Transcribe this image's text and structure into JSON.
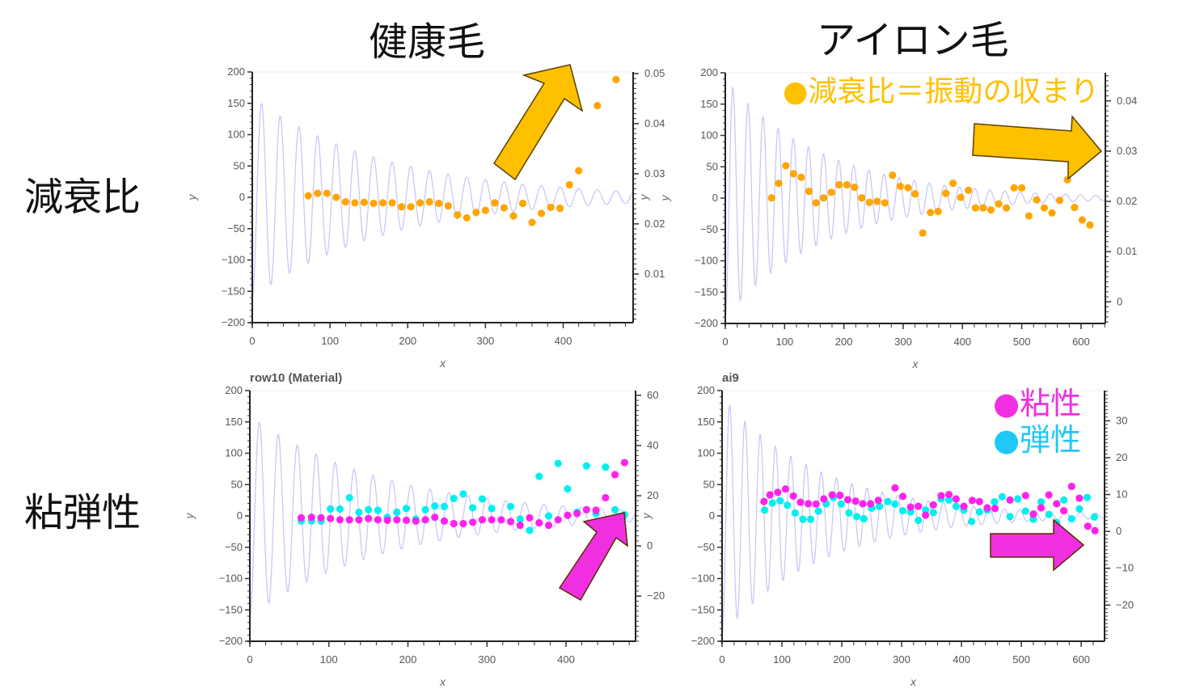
{
  "column_titles": [
    "健康毛",
    "アイロン毛"
  ],
  "row_labels": [
    "減衰比",
    "粘弾性"
  ],
  "annotations": {
    "damping": "●減衰比＝振動の収まり",
    "viscosity": "●粘性",
    "elasticity": "●弾性"
  },
  "colors": {
    "orange_text": "#FFC000",
    "orange_dots": "#FFA500",
    "magenta": "#FF22EE",
    "cyan": "#00F0F0",
    "wave": "#C8C8F8",
    "arrow_orange": "#FFC000",
    "arrow_magenta": "#F030E0"
  },
  "chart_data": [
    {
      "type": "scatter",
      "panel": "健康毛 / 減衰比",
      "title": "",
      "xlabel": "x",
      "ylabel": "y",
      "y2label": "y",
      "xlim": [
        0,
        490
      ],
      "ylim": [
        -200,
        200
      ],
      "y2lim": [
        0.0003,
        0.0503
      ],
      "xticks": [
        "0",
        "100",
        "200",
        "300",
        "400"
      ],
      "yticks": [
        "200",
        "150",
        "100",
        "50",
        "0",
        "−50",
        "−100",
        "−150",
        "−200"
      ],
      "y2ticks": [
        "0.05",
        "0.04",
        "0.03",
        "0.02",
        "0.01"
      ],
      "wave": {
        "amplitude": 160,
        "period": 24,
        "decay": 0.0058
      },
      "series": [
        {
          "name": "減衰比",
          "color": "#FFA500",
          "x": [
            72,
            84,
            96,
            108,
            120,
            132,
            144,
            156,
            168,
            180,
            192,
            204,
            216,
            228,
            240,
            252,
            264,
            276,
            288,
            300,
            312,
            324,
            336,
            348,
            360,
            372,
            384,
            396,
            408,
            420,
            444,
            468
          ],
          "y": [
            0.0256,
            0.0261,
            0.0261,
            0.0253,
            0.0244,
            0.0242,
            0.0243,
            0.0241,
            0.0242,
            0.0242,
            0.0234,
            0.0234,
            0.0242,
            0.0244,
            0.0241,
            0.0236,
            0.0218,
            0.0212,
            0.0223,
            0.0227,
            0.0242,
            0.0232,
            0.0216,
            0.0241,
            0.0203,
            0.0221,
            0.0233,
            0.0231,
            0.0278,
            0.0306,
            0.0436,
            0.0488
          ]
        }
      ]
    },
    {
      "type": "scatter",
      "panel": "アイロン毛 / 減衰比",
      "title": "",
      "xlabel": "x",
      "ylabel": "y",
      "y2label": "",
      "xlim": [
        0,
        641
      ],
      "ylim": [
        -200,
        200
      ],
      "y2lim": [
        -0.0043,
        0.0456
      ],
      "xticks": [
        "0",
        "100",
        "200",
        "300",
        "400",
        "500",
        "600"
      ],
      "yticks": [
        "200",
        "150",
        "100",
        "50",
        "0",
        "−50",
        "−100",
        "−150",
        "−200"
      ],
      "y2ticks": [
        "0.04",
        "0.03",
        "0.02",
        "0.01",
        "0"
      ],
      "wave": {
        "amplitude": 190,
        "period": 25.5,
        "decay": 0.006
      },
      "series": [
        {
          "name": "減衰比",
          "color": "#FFA500",
          "x": [
            78,
            90,
            102,
            115,
            128,
            141,
            153,
            166,
            179,
            192,
            205,
            218,
            230,
            243,
            256,
            269,
            282,
            295,
            308,
            320,
            333,
            346,
            359,
            372,
            384,
            397,
            410,
            422,
            435,
            448,
            461,
            474,
            487,
            500,
            512,
            525,
            538,
            551,
            564,
            577,
            589,
            602,
            615
          ],
          "y": [
            0.0207,
            0.0236,
            0.0271,
            0.0255,
            0.0248,
            0.022,
            0.0197,
            0.0207,
            0.0218,
            0.0233,
            0.0233,
            0.0228,
            0.0207,
            0.0198,
            0.02,
            0.0197,
            0.0252,
            0.023,
            0.0227,
            0.0215,
            0.0137,
            0.0178,
            0.018,
            0.0216,
            0.0236,
            0.0208,
            0.0222,
            0.0187,
            0.0187,
            0.0183,
            0.0195,
            0.0187,
            0.0227,
            0.0227,
            0.0171,
            0.0203,
            0.0187,
            0.0177,
            0.0202,
            0.0243,
            0.0188,
            0.0163,
            0.0153
          ]
        }
      ]
    },
    {
      "type": "scatter",
      "panel": "健康毛 / 粘弾性",
      "title": "row10 (Material)",
      "xlabel": "x",
      "ylabel": "y",
      "y2label": "y",
      "xlim": [
        0,
        488
      ],
      "ylim": [
        -200,
        200
      ],
      "y2lim": [
        -38,
        61.9
      ],
      "xticks": [
        "0",
        "100",
        "200",
        "300",
        "400"
      ],
      "yticks": [
        "200",
        "150",
        "100",
        "50",
        "0",
        "−50",
        "−100",
        "−150",
        "−200"
      ],
      "y2ticks": [
        "60",
        "40",
        "20",
        "0",
        "−20"
      ],
      "wave": {
        "amplitude": 160,
        "period": 24,
        "decay": 0.0058
      },
      "series": [
        {
          "name": "弾性",
          "color": "#00F0F0",
          "x": [
            65,
            78,
            90,
            102,
            114,
            126,
            138,
            150,
            162,
            174,
            186,
            198,
            210,
            222,
            234,
            246,
            258,
            270,
            282,
            294,
            306,
            330,
            342,
            354,
            366,
            378,
            390,
            402,
            414,
            426,
            438,
            450,
            462,
            474
          ],
          "y": [
            9.9,
            9.9,
            9.9,
            14.7,
            14.7,
            19.2,
            13.4,
            14.4,
            14.2,
            11.4,
            13.4,
            14.9,
            10.7,
            14.4,
            15.9,
            15.7,
            18.9,
            20.7,
            15.2,
            18.7,
            14.9,
            15.7,
            10.7,
            6.2,
            27.7,
            11.9,
            32.9,
            22.7,
            13.4,
            31.9,
            12.9,
            31.4,
            14.4,
            12.4
          ]
        },
        {
          "name": "粘性",
          "color": "#FF22EE",
          "x": [
            65,
            78,
            90,
            102,
            114,
            126,
            138,
            150,
            162,
            174,
            186,
            198,
            210,
            222,
            234,
            246,
            258,
            270,
            282,
            294,
            306,
            318,
            330,
            342,
            354,
            366,
            378,
            390,
            402,
            414,
            426,
            438,
            450,
            462,
            474
          ],
          "y": [
            11.2,
            11.4,
            11.2,
            10.9,
            10.4,
            10.4,
            10.4,
            10.9,
            10.4,
            10.2,
            10.4,
            10.2,
            9.9,
            10.4,
            11.4,
            9.9,
            8.9,
            8.9,
            9.4,
            10.4,
            10.4,
            10.4,
            9.7,
            8.2,
            11.2,
            9.2,
            8.2,
            10.4,
            12.2,
            12.9,
            14.4,
            14.2,
            19.2,
            28.4,
            33.2
          ]
        }
      ]
    },
    {
      "type": "scatter",
      "panel": "アイロン毛 / 粘弾性",
      "title": "ai9",
      "xlabel": "x",
      "ylabel": "",
      "y2label": "",
      "xlim": [
        0,
        639
      ],
      "ylim": [
        -200,
        200
      ],
      "y2lim": [
        -29.8,
        38.2
      ],
      "xticks": [
        "0",
        "100",
        "200",
        "300",
        "400",
        "500",
        "600"
      ],
      "yticks": [
        "200",
        "150",
        "100",
        "50",
        "0",
        "−50",
        "−100",
        "−150",
        "−200"
      ],
      "y2ticks": [
        "30",
        "20",
        "10",
        "0",
        "−10",
        "−20"
      ],
      "wave": {
        "amplitude": 190,
        "period": 25.5,
        "decay": 0.006
      },
      "series": [
        {
          "name": "弾性",
          "color": "#00F0F0",
          "x": [
            71,
            84,
            97,
            109,
            122,
            135,
            148,
            161,
            174,
            186,
            199,
            212,
            225,
            237,
            250,
            263,
            277,
            289,
            302,
            315,
            328,
            340,
            353,
            366,
            379,
            391,
            404,
            417,
            430,
            443,
            455,
            468,
            481,
            494,
            507,
            520,
            533,
            546,
            559,
            571,
            584,
            597,
            610,
            622
          ],
          "y": [
            5.8,
            7.7,
            8.3,
            7.1,
            5.0,
            3.3,
            3.3,
            5.5,
            7.5,
            9.2,
            7.4,
            5.0,
            4.0,
            3.4,
            6.3,
            6.8,
            8.1,
            7.4,
            5.6,
            5.3,
            3.0,
            5.8,
            5.1,
            8.8,
            8.5,
            6.8,
            5.8,
            2.7,
            5.3,
            5.8,
            8.0,
            9.4,
            4.0,
            8.8,
            5.5,
            3.3,
            8.0,
            4.6,
            2.4,
            8.5,
            3.4,
            6.1,
            9.2,
            3.9
          ]
        },
        {
          "name": "粘性",
          "color": "#FF22EE",
          "x": [
            70,
            80,
            93,
            106,
            119,
            131,
            144,
            157,
            170,
            184,
            197,
            210,
            223,
            235,
            248,
            261,
            289,
            302,
            315,
            328,
            340,
            353,
            366,
            379,
            391,
            404,
            418,
            430,
            443,
            456,
            481,
            507,
            520,
            533,
            546,
            559,
            571,
            584,
            597,
            611,
            623
          ],
          "y": [
            8.1,
            9.9,
            10.6,
            11.5,
            9.6,
            7.9,
            7.5,
            7.4,
            8.8,
            9.9,
            9.8,
            8.6,
            8.2,
            7.5,
            7.5,
            8.4,
            11.8,
            9.5,
            6.6,
            6.8,
            4.4,
            7.2,
            9.7,
            10.0,
            8.8,
            6.8,
            8.4,
            8.1,
            6.4,
            6.2,
            8.5,
            9.7,
            4.7,
            6.4,
            9.9,
            7.5,
            5.6,
            12.2,
            9.0,
            1.4,
            0.2
          ]
        }
      ]
    }
  ]
}
